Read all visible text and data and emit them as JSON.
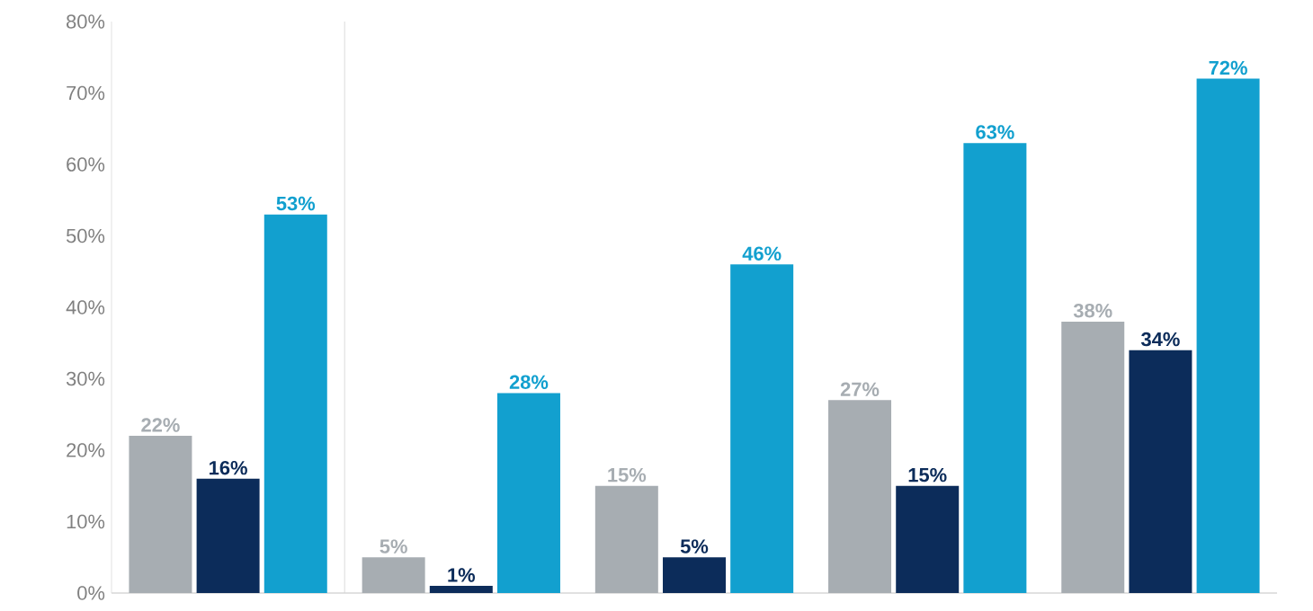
{
  "chart_data": {
    "type": "bar",
    "categories": [
      null,
      null,
      null,
      null,
      null
    ],
    "series": [
      {
        "color": "#a7adb2",
        "values": [
          22,
          5,
          15,
          27,
          38
        ],
        "value_labels": [
          "22%",
          "5%",
          "15%",
          "27%",
          "38%"
        ]
      },
      {
        "color": "#0c2c5a",
        "values": [
          16,
          1,
          5,
          15,
          34
        ],
        "value_labels": [
          "16%",
          "1%",
          "5%",
          "15%",
          "34%"
        ]
      },
      {
        "color": "#12a0cf",
        "values": [
          53,
          28,
          46,
          63,
          72
        ],
        "value_labels": [
          "53%",
          "28%",
          "46%",
          "63%",
          "72%"
        ]
      }
    ],
    "ylim": [
      0,
      80
    ],
    "yticks": [
      {
        "value": 0,
        "label": "0%"
      },
      {
        "value": 10,
        "label": "10%"
      },
      {
        "value": 20,
        "label": "20%"
      },
      {
        "value": 30,
        "label": "30%"
      },
      {
        "value": 40,
        "label": "40%"
      },
      {
        "value": 50,
        "label": "50%"
      },
      {
        "value": 60,
        "label": "60%"
      },
      {
        "value": 70,
        "label": "70%"
      },
      {
        "value": 80,
        "label": "80%"
      }
    ],
    "grid": false
  }
}
